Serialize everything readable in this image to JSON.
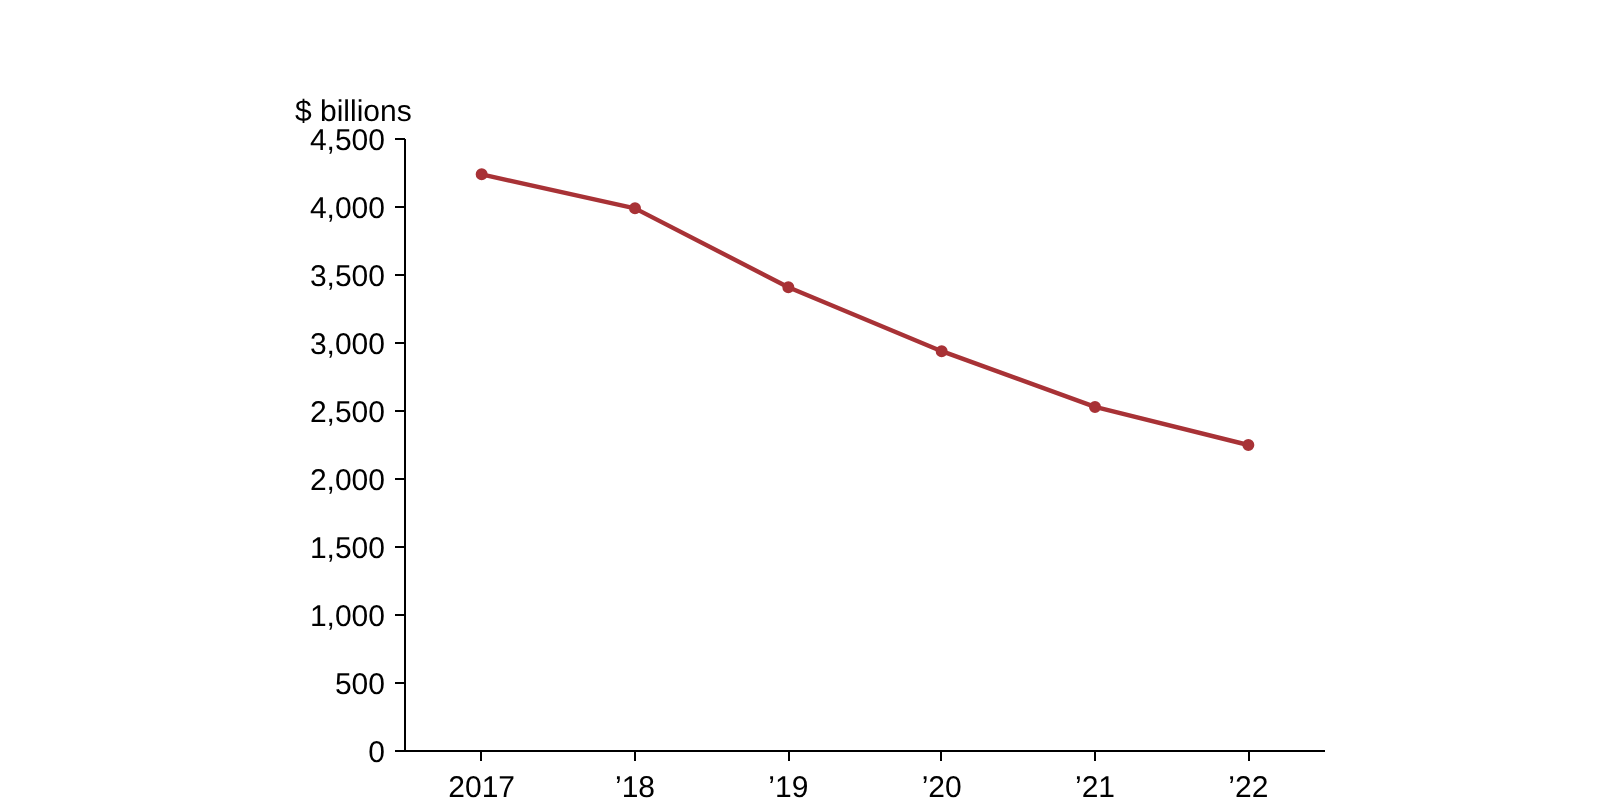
{
  "chart_data": {
    "type": "line",
    "ylabel": "$ billions",
    "categories": [
      "2017",
      "’18",
      "’19",
      "’20",
      "’21",
      "’22"
    ],
    "series": [
      {
        "color": "#a83236",
        "values": [
          4240,
          3990,
          3410,
          2940,
          2530,
          2250
        ]
      }
    ],
    "ylim": [
      0,
      4500
    ],
    "yticks": [
      {
        "value": 0,
        "label": "0"
      },
      {
        "value": 500,
        "label": "500"
      },
      {
        "value": 1000,
        "label": "1,000"
      },
      {
        "value": 1500,
        "label": "1,500"
      },
      {
        "value": 2000,
        "label": "2,000"
      },
      {
        "value": 2500,
        "label": "2,500"
      },
      {
        "value": 3000,
        "label": "3,000"
      },
      {
        "value": 3500,
        "label": "3,500"
      },
      {
        "value": 4000,
        "label": "4,000"
      },
      {
        "value": 4500,
        "label": "4,500"
      }
    ],
    "grid": false,
    "marker": "circle",
    "line_style": "solid"
  }
}
